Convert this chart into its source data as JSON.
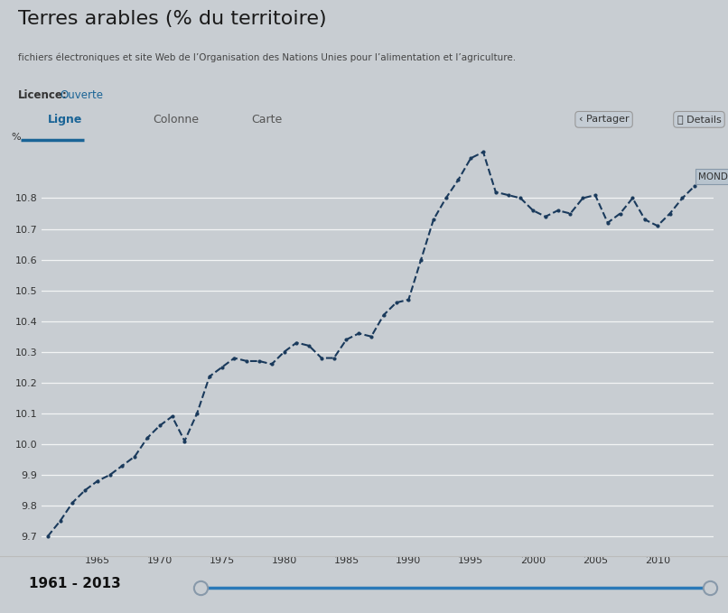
{
  "title": "Terres arables (% du territoire)",
  "subtitle": "fichiers électroniques et site Web de l’Organisation des Nations Unies pour l’alimentation et l’agriculture.",
  "licence_label": "Licence:",
  "licence_link": "Ouverte",
  "tabs": [
    "Ligne",
    "Colonne",
    "Carte"
  ],
  "ylabel": "%",
  "ymin": 9.65,
  "ymax": 10.97,
  "footer_label": "1961 - 2013",
  "series_label": "MONDE",
  "line_color": "#1a3a5c",
  "bg_color": "#c8cdd2",
  "chart_bg": "#c8cdd2",
  "tab_underline": "#1a6496",
  "years": [
    1961,
    1962,
    1963,
    1964,
    1965,
    1966,
    1967,
    1968,
    1969,
    1970,
    1971,
    1972,
    1973,
    1974,
    1975,
    1976,
    1977,
    1978,
    1979,
    1980,
    1981,
    1982,
    1983,
    1984,
    1985,
    1986,
    1987,
    1988,
    1989,
    1990,
    1991,
    1992,
    1993,
    1994,
    1995,
    1996,
    1997,
    1998,
    1999,
    2000,
    2001,
    2002,
    2003,
    2004,
    2005,
    2006,
    2007,
    2008,
    2009,
    2010,
    2011,
    2012,
    2013
  ],
  "values": [
    9.7,
    9.75,
    9.81,
    9.85,
    9.88,
    9.9,
    9.93,
    9.96,
    10.02,
    10.06,
    10.09,
    10.01,
    10.1,
    10.22,
    10.25,
    10.28,
    10.27,
    10.27,
    10.26,
    10.3,
    10.33,
    10.32,
    10.28,
    10.28,
    10.34,
    10.36,
    10.35,
    10.42,
    10.46,
    10.47,
    10.6,
    10.73,
    10.8,
    10.86,
    10.93,
    10.95,
    10.82,
    10.81,
    10.8,
    10.76,
    10.74,
    10.76,
    10.75,
    10.8,
    10.81,
    10.72,
    10.75,
    10.8,
    10.73,
    10.71,
    10.75,
    10.8,
    10.84
  ],
  "yticks": [
    9.7,
    9.8,
    9.9,
    10.0,
    10.1,
    10.2,
    10.3,
    10.4,
    10.5,
    10.6,
    10.7,
    10.8
  ],
  "xtick_start": 1965,
  "xtick_end": 2015,
  "xtick_step": 5
}
